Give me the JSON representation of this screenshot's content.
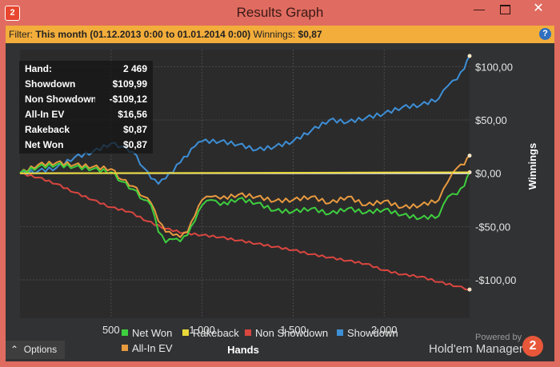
{
  "window": {
    "title": "Results Graph",
    "app_icon_text": "2",
    "minimize_glyph": "—",
    "close_glyph": "✕"
  },
  "filter_bar": {
    "filter_label": "Filter:",
    "filter_value": "This month (01.12.2013 0:00 to 01.01.2014 0:00)",
    "winnings_label": "Winnings:",
    "winnings_value": "$0,87",
    "help_icon_text": "?"
  },
  "stats": [
    {
      "label": "Hand:",
      "value": "2 469"
    },
    {
      "label": "Showdown",
      "value": "$109,99"
    },
    {
      "label": "Non Showdown",
      "value": "-$109,12"
    },
    {
      "label": "All-In EV",
      "value": "$16,56"
    },
    {
      "label": "Rakeback",
      "value": "$0,87"
    },
    {
      "label": "Net Won",
      "value": "$0,87"
    }
  ],
  "chart_data": {
    "type": "line",
    "xlabel": "Hands",
    "ylabel": "Winnings",
    "xlim": [
      0,
      2469
    ],
    "ylim": [
      -136,
      116
    ],
    "x_ticks": [
      500,
      1000,
      1500,
      2000
    ],
    "x_tick_labels": [
      "500",
      "1 000",
      "1 500",
      "2 000"
    ],
    "y_ticks": [
      100,
      50,
      0,
      -50,
      -100
    ],
    "y_tick_labels": [
      "$100,00",
      "$50,00",
      "$0,00",
      "-$50,00",
      "-$100,00"
    ],
    "grid": true,
    "legend_position": "bottom",
    "series": [
      {
        "name": "Net Won",
        "color": "#3ecf3e",
        "x": [
          0,
          100,
          200,
          300,
          400,
          500,
          560,
          620,
          680,
          720,
          760,
          800,
          840,
          880,
          920,
          960,
          1000,
          1050,
          1100,
          1200,
          1300,
          1400,
          1500,
          1600,
          1700,
          1800,
          1900,
          2000,
          2100,
          2200,
          2300,
          2350,
          2400,
          2440,
          2469
        ],
        "y": [
          0,
          6,
          8,
          6,
          4,
          1,
          -8,
          -15,
          -25,
          -30,
          -55,
          -65,
          -62,
          -64,
          -58,
          -45,
          -30,
          -25,
          -30,
          -24,
          -28,
          -35,
          -36,
          -33,
          -38,
          -33,
          -37,
          -34,
          -39,
          -42,
          -40,
          -22,
          -20,
          -12,
          0.87
        ]
      },
      {
        "name": "Rakeback",
        "color": "#e8d83a",
        "x": [
          0,
          2469
        ],
        "y": [
          0,
          0.87
        ]
      },
      {
        "name": "Non Showdown",
        "color": "#d9463f",
        "x": [
          0,
          100,
          200,
          300,
          400,
          500,
          600,
          700,
          800,
          900,
          1000,
          1100,
          1200,
          1300,
          1400,
          1500,
          1600,
          1700,
          1800,
          1900,
          2000,
          2100,
          2200,
          2300,
          2400,
          2469
        ],
        "y": [
          0,
          -4,
          -10,
          -18,
          -25,
          -32,
          -36,
          -45,
          -52,
          -56,
          -58,
          -60,
          -63,
          -66,
          -69,
          -72,
          -76,
          -79,
          -82,
          -85,
          -91,
          -95,
          -97,
          -102,
          -106,
          -109.12
        ]
      },
      {
        "name": "Showdown",
        "color": "#3d8fd6",
        "x": [
          0,
          100,
          200,
          300,
          400,
          500,
          560,
          620,
          680,
          720,
          760,
          800,
          880,
          960,
          1000,
          1100,
          1200,
          1300,
          1400,
          1500,
          1600,
          1700,
          1800,
          1900,
          2000,
          2100,
          2200,
          2300,
          2350,
          2400,
          2440,
          2469
        ],
        "y": [
          0,
          2,
          5,
          15,
          20,
          28,
          25,
          20,
          5,
          -5,
          -10,
          -5,
          10,
          25,
          30,
          30,
          27,
          22,
          25,
          30,
          40,
          50,
          48,
          52,
          56,
          62,
          64,
          70,
          82,
          88,
          98,
          109.99
        ]
      },
      {
        "name": "All-In EV",
        "color": "#e89a3e",
        "x": [
          0,
          100,
          200,
          300,
          400,
          500,
          560,
          620,
          680,
          720,
          760,
          800,
          840,
          880,
          920,
          960,
          1000,
          1050,
          1100,
          1200,
          1300,
          1400,
          1500,
          1600,
          1700,
          1800,
          1900,
          2000,
          2100,
          2200,
          2300,
          2350,
          2400,
          2440,
          2469
        ],
        "y": [
          0,
          8,
          10,
          8,
          6,
          4,
          -6,
          -12,
          -22,
          -28,
          -45,
          -55,
          -58,
          -60,
          -55,
          -40,
          -25,
          -22,
          -24,
          -20,
          -22,
          -26,
          -25,
          -22,
          -28,
          -22,
          -30,
          -26,
          -32,
          -30,
          -25,
          -8,
          5,
          8,
          16.56
        ]
      }
    ]
  },
  "options_label": "Options",
  "options_icon_glyph": "⌃",
  "powered_by": "Powered by",
  "brand_name": "Hold'em Manager",
  "brand_logo_text": "2"
}
